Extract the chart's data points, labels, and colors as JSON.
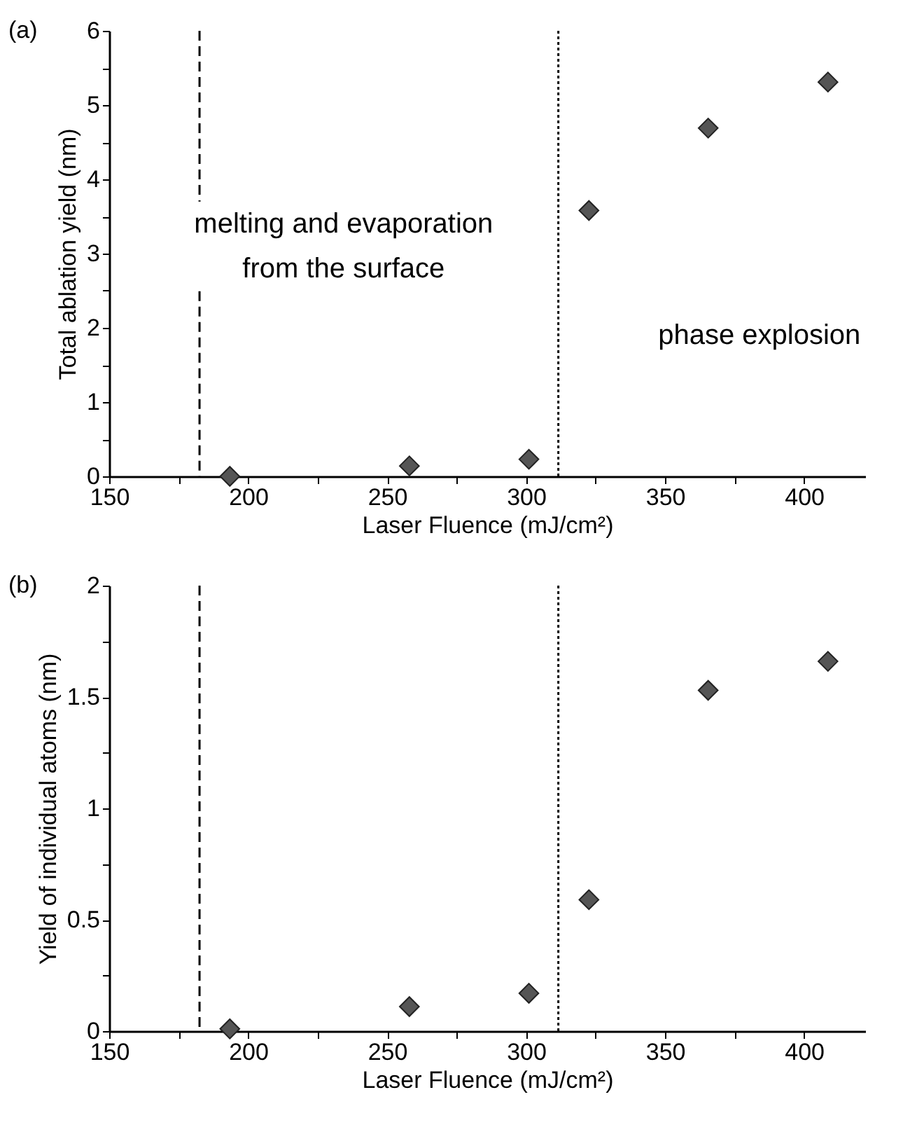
{
  "chart_data": [
    {
      "type": "scatter",
      "title": "(a)",
      "xlabel": "Laser Fluence (mJ/cm²)",
      "ylabel": "Total ablation yield (nm)",
      "x": [
        193.4,
        258,
        301,
        322.6,
        365.5,
        408.6
      ],
      "series": [
        {
          "color": "#555555",
          "values": [
            0,
            0.14,
            0.23,
            3.58,
            4.69,
            5.31
          ]
        }
      ],
      "marker": "diamond",
      "xlim": [
        150,
        422
      ],
      "xticks": [
        150,
        {
          "value": 175,
          "label": null
        },
        200,
        {
          "value": 225,
          "label": null
        },
        250,
        {
          "value": 275,
          "label": null
        },
        300,
        {
          "value": 325,
          "label": null
        },
        350,
        {
          "value": 375,
          "label": null
        },
        400
      ],
      "ylim": [
        0,
        6
      ],
      "yticks": [
        0,
        {
          "value": 0.5,
          "label": null
        },
        1,
        {
          "value": 1.5,
          "label": null
        },
        2,
        {
          "value": 2.5,
          "label": null
        },
        3,
        {
          "value": 3.5,
          "label": null
        },
        4,
        {
          "value": 4.5,
          "label": null
        },
        5,
        {
          "value": 5.5,
          "label": null
        },
        6
      ],
      "ref_lines": [
        {
          "axis": "x",
          "value": 182.5,
          "color": "#000000",
          "line_style": "dashed"
        },
        {
          "axis": "x",
          "value": 311.6,
          "color": "#000000",
          "line_style": "dotted"
        }
      ],
      "annotations": [
        "melting and evaporation\nfrom the surface",
        "phase explosion"
      ],
      "grid": false
    },
    {
      "type": "scatter",
      "title": "(b)",
      "xlabel": "Laser Fluence (mJ/cm²)",
      "ylabel": "Yield of individual atoms (nm)",
      "x": [
        193.4,
        258,
        301,
        322.6,
        365.5,
        408.6
      ],
      "series": [
        {
          "color": "#555555",
          "values": [
            0.01,
            0.11,
            0.17,
            0.59,
            1.53,
            1.66
          ]
        }
      ],
      "marker": "diamond",
      "xlim": [
        150,
        422
      ],
      "xticks": [
        150,
        {
          "value": 175,
          "label": null
        },
        200,
        {
          "value": 225,
          "label": null
        },
        250,
        {
          "value": 275,
          "label": null
        },
        300,
        {
          "value": 325,
          "label": null
        },
        350,
        {
          "value": 375,
          "label": null
        },
        400
      ],
      "ylim": [
        0,
        2
      ],
      "yticks": [
        0,
        {
          "value": 0.25,
          "label": null
        },
        0.5,
        {
          "value": 0.75,
          "label": null
        },
        1,
        {
          "value": 1.25,
          "label": null
        },
        1.5,
        {
          "value": 1.75,
          "label": null
        },
        2
      ],
      "ref_lines": [
        {
          "axis": "x",
          "value": 182.5,
          "color": "#000000",
          "line_style": "dashed"
        },
        {
          "axis": "x",
          "value": 311.6,
          "color": "#000000",
          "line_style": "dotted"
        }
      ],
      "grid": false
    }
  ]
}
